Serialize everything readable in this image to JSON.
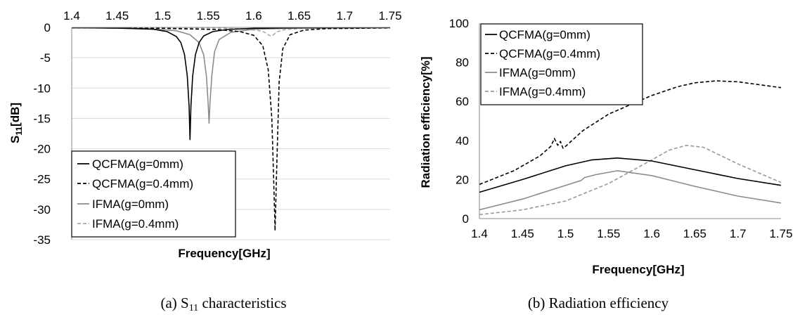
{
  "chart_data": [
    {
      "type": "line",
      "caption": "(a) S11 characteristics",
      "xlabel": "Frequency[GHz]",
      "ylabel": "S11[dB]",
      "xlim": [
        1.4,
        1.75
      ],
      "ylim": [
        -35,
        0
      ],
      "x_axis_position": "top",
      "x_ticks": [
        "1.4",
        "1.45",
        "1.5",
        "1.55",
        "1.6",
        "1.65",
        "1.7",
        "1.75"
      ],
      "y_ticks": [
        "0",
        "-5",
        "-10",
        "-15",
        "-20",
        "-25",
        "-30",
        "-35"
      ],
      "grid": true,
      "legend_position": "bottom-left",
      "series": [
        {
          "name": "QCFMA(g=0mm)",
          "color": "#000000",
          "dash": "solid",
          "x": [
            1.4,
            1.45,
            1.49,
            1.505,
            1.515,
            1.52,
            1.524,
            1.527,
            1.529,
            1.53,
            1.531,
            1.533,
            1.536,
            1.54,
            1.545,
            1.555,
            1.57,
            1.6,
            1.65,
            1.75
          ],
          "y": [
            -0.05,
            -0.1,
            -0.3,
            -0.7,
            -1.5,
            -2.5,
            -4.5,
            -8,
            -13,
            -18.5,
            -13,
            -8,
            -4.5,
            -2.5,
            -1.4,
            -0.7,
            -0.35,
            -0.15,
            -0.07,
            -0.03
          ]
        },
        {
          "name": "QCFMA(g=0.4mm)",
          "color": "#000000",
          "dash": "dashed",
          "x": [
            1.4,
            1.5,
            1.56,
            1.585,
            1.6,
            1.61,
            1.616,
            1.62,
            1.622,
            1.6235,
            1.625,
            1.628,
            1.632,
            1.64,
            1.655,
            1.68,
            1.75
          ],
          "y": [
            -0.05,
            -0.15,
            -0.35,
            -0.7,
            -1.3,
            -3,
            -7,
            -15,
            -25,
            -33.5,
            -25,
            -9,
            -3.5,
            -1.2,
            -0.45,
            -0.2,
            -0.08
          ]
        },
        {
          "name": "IFMA(g=0mm)",
          "color": "#8c8c8c",
          "dash": "solid",
          "x": [
            1.4,
            1.48,
            1.515,
            1.53,
            1.54,
            1.545,
            1.548,
            1.55,
            1.551,
            1.552,
            1.554,
            1.557,
            1.562,
            1.575,
            1.6,
            1.65,
            1.75
          ],
          "y": [
            -0.05,
            -0.2,
            -0.55,
            -1.2,
            -2.5,
            -4.5,
            -8,
            -12.5,
            -15.8,
            -12.5,
            -8,
            -4,
            -2,
            -0.8,
            -0.3,
            -0.1,
            -0.03
          ]
        },
        {
          "name": "IFMA(g=0.4mm)",
          "color": "#aaaaaa",
          "dash": "dashed",
          "x": [
            1.4,
            1.5,
            1.56,
            1.59,
            1.605,
            1.612,
            1.615,
            1.617,
            1.619,
            1.621,
            1.623,
            1.626,
            1.635,
            1.655,
            1.7,
            1.75
          ],
          "y": [
            -0.03,
            -0.05,
            -0.1,
            -0.25,
            -0.5,
            -0.8,
            -1.1,
            -1.3,
            -1.4,
            -1.3,
            -1.05,
            -0.7,
            -0.35,
            -0.15,
            -0.05,
            -0.02
          ]
        }
      ]
    },
    {
      "type": "line",
      "caption": "(b) Radiation efficiency",
      "xlabel": "Frequency[GHz]",
      "ylabel": "Radiation efficiency[%]",
      "xlim": [
        1.4,
        1.75
      ],
      "ylim": [
        0,
        100
      ],
      "x_axis_position": "bottom",
      "x_ticks": [
        "1.4",
        "1.45",
        "1.5",
        "1.55",
        "1.6",
        "1.65",
        "1.7",
        "1.75"
      ],
      "y_ticks": [
        "0",
        "20",
        "40",
        "60",
        "80",
        "100"
      ],
      "grid": false,
      "legend_position": "top-left",
      "series": [
        {
          "name": "QCFMA(g=0mm)",
          "color": "#000000",
          "dash": "solid",
          "x": [
            1.4,
            1.45,
            1.5,
            1.53,
            1.56,
            1.6,
            1.65,
            1.7,
            1.75
          ],
          "y": [
            13.5,
            20,
            27,
            30,
            31,
            29.5,
            25,
            20.5,
            17
          ]
        },
        {
          "name": "QCFMA(g=0.4mm)",
          "color": "#000000",
          "dash": "dashed",
          "x": [
            1.4,
            1.44,
            1.47,
            1.483,
            1.487,
            1.491,
            1.494,
            1.497,
            1.5,
            1.52,
            1.55,
            1.6,
            1.63,
            1.65,
            1.675,
            1.7,
            1.75
          ],
          "y": [
            17.5,
            24.5,
            32,
            37,
            41,
            37.5,
            39.5,
            36,
            37,
            45,
            53.5,
            63,
            67.5,
            69.5,
            70.5,
            70,
            67
          ]
        },
        {
          "name": "IFMA(g=0mm)",
          "color": "#8c8c8c",
          "dash": "solid",
          "x": [
            1.4,
            1.45,
            1.5,
            1.518,
            1.522,
            1.535,
            1.56,
            1.6,
            1.65,
            1.7,
            1.75
          ],
          "y": [
            4.5,
            10,
            17,
            19.5,
            21,
            22.5,
            24.5,
            22,
            16.5,
            11.5,
            8
          ]
        },
        {
          "name": "IFMA(g=0.4mm)",
          "color": "#999999",
          "dash": "dashed",
          "x": [
            1.4,
            1.45,
            1.5,
            1.55,
            1.6,
            1.62,
            1.64,
            1.66,
            1.7,
            1.75
          ],
          "y": [
            2,
            4.5,
            9,
            18,
            30,
            35,
            37.5,
            36.5,
            28,
            18.5
          ]
        }
      ]
    }
  ]
}
